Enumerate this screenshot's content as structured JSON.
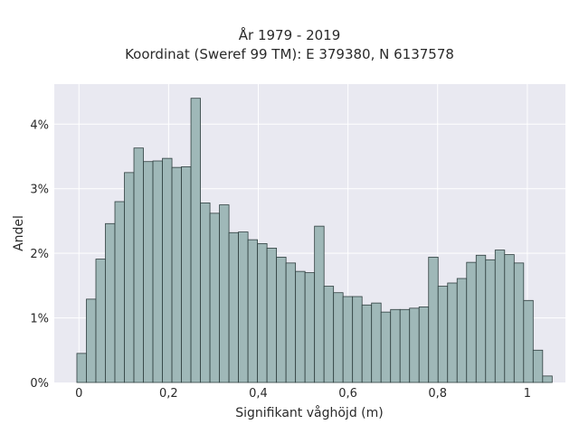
{
  "chart_data": {
    "type": "bar",
    "title": [
      "År 1979 - 2019",
      "Koordinat (Sweref 99 TM): E 379380, N 6137578"
    ],
    "xlabel": "Signifikant våghöjd (m)",
    "ylabel": "Andel",
    "x_ticks": [
      {
        "value": 0,
        "label": "0"
      },
      {
        "value": 0.2,
        "label": "0,2"
      },
      {
        "value": 0.4,
        "label": "0,4"
      },
      {
        "value": 0.6,
        "label": "0,6"
      },
      {
        "value": 0.8,
        "label": "0,8"
      },
      {
        "value": 1,
        "label": "1"
      }
    ],
    "y_ticks": [
      {
        "value": 0,
        "label": "0%"
      },
      {
        "value": 1,
        "label": "1%"
      },
      {
        "value": 2,
        "label": "2%"
      },
      {
        "value": 3,
        "label": "3%"
      },
      {
        "value": 4,
        "label": "4%"
      }
    ],
    "xlim": [
      -0.055,
      1.085
    ],
    "ylim": [
      0,
      4.62
    ],
    "bin_width": 0.0212,
    "bin_start": -0.0046,
    "values": [
      0.45,
      1.29,
      1.91,
      2.46,
      2.8,
      3.25,
      3.63,
      3.42,
      3.43,
      3.47,
      3.33,
      3.34,
      4.4,
      2.78,
      2.62,
      2.75,
      2.32,
      2.33,
      2.21,
      2.15,
      2.08,
      1.94,
      1.85,
      1.72,
      1.7,
      2.42,
      1.49,
      1.39,
      1.33,
      1.33,
      1.2,
      1.23,
      1.09,
      1.13,
      1.13,
      1.15,
      1.17,
      1.94,
      1.49,
      1.54,
      1.61,
      1.86,
      1.97,
      1.9,
      2.05,
      1.98,
      1.85,
      1.27,
      0.5,
      0.1
    ],
    "bar_color": "#9fb8b8",
    "bar_edge_color": "#2f3f3f",
    "plot_background": "#e9e9f1",
    "grid": true
  }
}
